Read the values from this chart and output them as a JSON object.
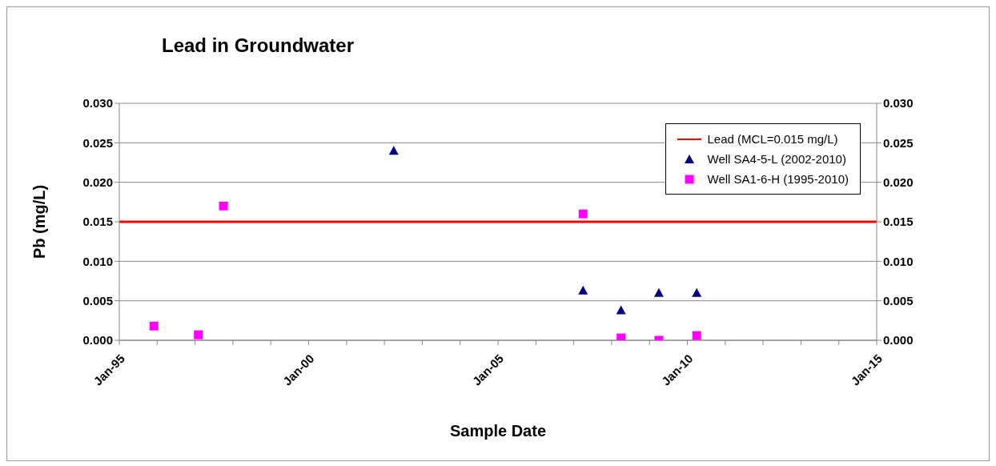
{
  "chart_data": {
    "type": "scatter",
    "title": "Lead in Groundwater",
    "xlabel": "Sample Date",
    "ylabel": "Pb (mg/L)",
    "series": [
      {
        "name": "Lead (MCL=0.015 mg/L)",
        "type": "line",
        "color": "#ff0000",
        "marker": "none",
        "x": [
          "1995-01",
          "2015-01"
        ],
        "values": [
          0.015,
          0.015
        ]
      },
      {
        "name": "Well SA4-5-L (2002-2010)",
        "color": "#000080",
        "marker": "triangle",
        "x": [
          "2002-04",
          "2007-04",
          "2008-04",
          "2009-04",
          "2010-04"
        ],
        "values": [
          0.024,
          0.0063,
          0.0038,
          0.006,
          0.006
        ]
      },
      {
        "name": "Well SA1-6-H (1995-2010)",
        "color": "#ff00ff",
        "marker": "square",
        "x": [
          "1995-12",
          "1997-02",
          "1997-10",
          "2007-04",
          "2008-04",
          "2009-04",
          "2010-04"
        ],
        "values": [
          0.0018,
          0.0007,
          0.017,
          0.016,
          0.0003,
          0.0,
          0.0006
        ]
      }
    ],
    "xlim": [
      "1995-01",
      "2015-01"
    ],
    "xticks": [
      {
        "value": "1995-01",
        "label": "Jan-95"
      },
      {
        "value": "1996-01",
        "label": null
      },
      {
        "value": "1997-01",
        "label": null
      },
      {
        "value": "1998-01",
        "label": null
      },
      {
        "value": "1999-01",
        "label": null
      },
      {
        "value": "2000-01",
        "label": "Jan-00"
      },
      {
        "value": "2001-01",
        "label": null
      },
      {
        "value": "2002-01",
        "label": null
      },
      {
        "value": "2003-01",
        "label": null
      },
      {
        "value": "2004-01",
        "label": null
      },
      {
        "value": "2005-01",
        "label": "Jan-05"
      },
      {
        "value": "2006-01",
        "label": null
      },
      {
        "value": "2007-01",
        "label": null
      },
      {
        "value": "2008-01",
        "label": null
      },
      {
        "value": "2009-01",
        "label": null
      },
      {
        "value": "2010-01",
        "label": "Jan-10"
      },
      {
        "value": "2011-01",
        "label": null
      },
      {
        "value": "2012-01",
        "label": null
      },
      {
        "value": "2013-01",
        "label": null
      },
      {
        "value": "2014-01",
        "label": null
      },
      {
        "value": "2015-01",
        "label": "Jan-15"
      }
    ],
    "ylim": [
      0,
      0.03
    ],
    "yticks": [
      {
        "value": 0,
        "label": "0.000"
      },
      {
        "value": 0.005,
        "label": "0.005"
      },
      {
        "value": 0.01,
        "label": "0.010"
      },
      {
        "value": 0.015,
        "label": "0.015"
      },
      {
        "value": 0.02,
        "label": "0.020"
      },
      {
        "value": 0.025,
        "label": "0.025"
      },
      {
        "value": 0.03,
        "label": "0.030"
      }
    ],
    "y2lim": [
      0,
      0.03
    ],
    "y2ticks": [
      {
        "value": 0,
        "label": "0.000"
      },
      {
        "value": 0.005,
        "label": "0.005"
      },
      {
        "value": 0.01,
        "label": "0.010"
      },
      {
        "value": 0.015,
        "label": "0.015"
      },
      {
        "value": 0.02,
        "label": "0.020"
      },
      {
        "value": 0.025,
        "label": "0.025"
      },
      {
        "value": 0.03,
        "label": "0.030"
      }
    ],
    "grid": "y",
    "legend": "top right"
  }
}
